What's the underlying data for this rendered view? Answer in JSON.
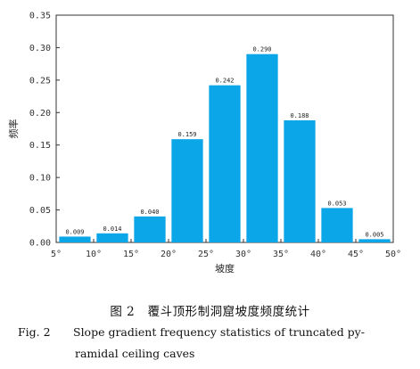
{
  "chart_data": {
    "type": "bar",
    "categories": [
      "5°–10°",
      "10°–15°",
      "15°–20°",
      "20°–25°",
      "25°–30°",
      "30°–35°",
      "35°–40°",
      "40°–45°",
      "45°–50°"
    ],
    "values": [
      0.009,
      0.014,
      0.04,
      0.159,
      0.242,
      0.29,
      0.188,
      0.053,
      0.005
    ],
    "value_labels": [
      "0.009",
      "0.014",
      "0.040",
      "0.159",
      "0.242",
      "0.290",
      "0.188",
      "0.053",
      "0.005"
    ],
    "x_ticks": [
      "5°",
      "10°",
      "15°",
      "20°",
      "25°",
      "30°",
      "35°",
      "40°",
      "45°",
      "50°"
    ],
    "y_ticks": [
      "0.00",
      "0.05",
      "0.10",
      "0.15",
      "0.20",
      "0.25",
      "0.30",
      "0.35"
    ],
    "xlabel": "坡度",
    "ylabel": "频率",
    "ylim": [
      0,
      0.35
    ],
    "bar_color": "#0aa6e8",
    "grid": false
  },
  "caption": {
    "cn_number": "图 2",
    "cn_text": "覆斗顶形制洞窟坡度频度统计",
    "en_number": "Fig. 2",
    "en_line1": "Slope gradient frequency statistics of truncated py-",
    "en_line2": "ramidal ceiling caves"
  }
}
